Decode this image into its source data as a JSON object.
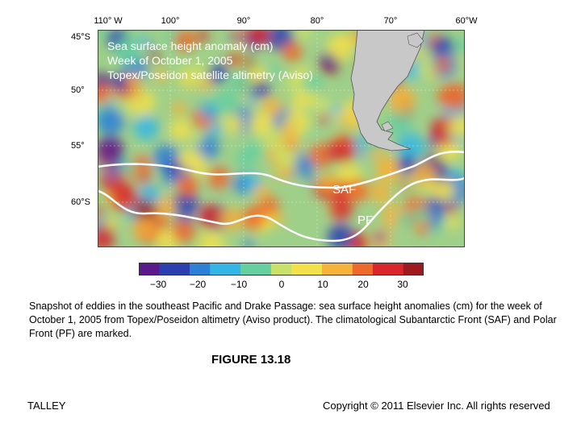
{
  "map": {
    "title_lines": [
      "Sea surface height anomaly (cm)",
      "Week of October 1, 2005",
      "Topex/Poseidon satellite altimetry (Aviso)"
    ],
    "lon_labels": [
      "110° W",
      "100°",
      "90°",
      "80°",
      "70°",
      "60°W"
    ],
    "lat_labels": [
      "45°S",
      "50°",
      "55°",
      "60°S"
    ],
    "front_labels": {
      "saf": "SAF",
      "pf": "PF"
    },
    "land_color": "#c8c8c8"
  },
  "colorbar": {
    "ticks": [
      "−30",
      "−20",
      "−10",
      "0",
      "10",
      "20",
      "30"
    ],
    "colors": [
      "#5a1a8c",
      "#2b3fb0",
      "#2e7fd6",
      "#33b6e6",
      "#66cfa0",
      "#c9e06a",
      "#f2e14a",
      "#f6b23a",
      "#ef6a2a",
      "#d8262a",
      "#9e1a1f"
    ]
  },
  "caption": "Snapshot of eddies in the southeast Pacific and Drake Passage: sea surface height anomalies (cm) for the week of October 1, 2005 from Topex/Poseidon altimetry (Aviso product). The climatological Subantarctic Front (SAF) and Polar Front (PF) are marked.",
  "figure_label": "FIGURE 13.18",
  "footer": {
    "author": "TALLEY",
    "copyright": "Copyright © 2011 Elsevier Inc. All rights reserved"
  }
}
